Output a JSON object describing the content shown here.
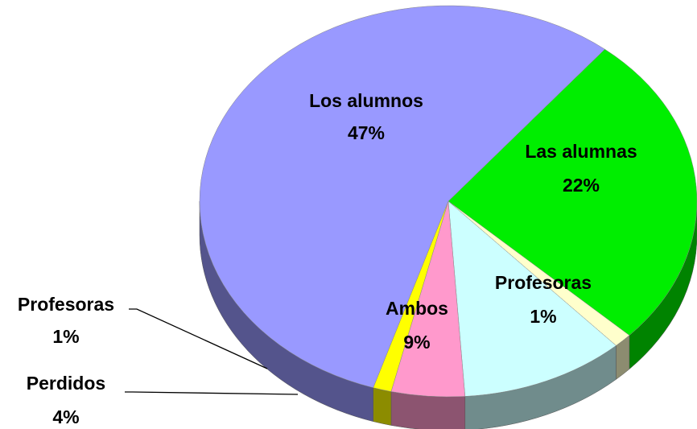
{
  "chart_data": {
    "type": "pie",
    "categories": [
      "Las alumnas",
      "Profesoras",
      "Ambos",
      "Perdidos",
      "Profesoras",
      "Los alumnos"
    ],
    "values": [
      22,
      1,
      9,
      4,
      1,
      47
    ],
    "value_labels": [
      "22%",
      "1%",
      "9%",
      "4%",
      "1%",
      "47%"
    ],
    "colors": [
      "#00ee00",
      "#ffffcc",
      "#ccffff",
      "#ff99cc",
      "#ffff00",
      "#9999ff"
    ]
  }
}
